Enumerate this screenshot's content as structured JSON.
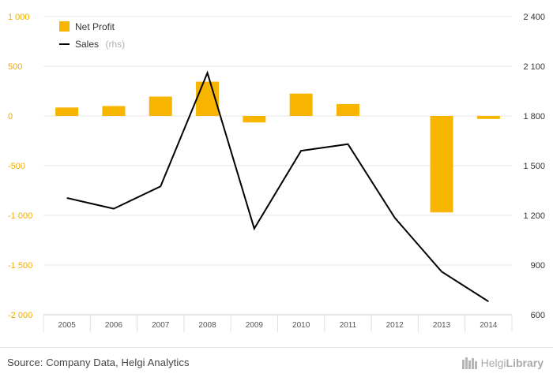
{
  "chart_data": {
    "type": "bar+line",
    "categories": [
      "2005",
      "2006",
      "2007",
      "2008",
      "2009",
      "2010",
      "2011",
      "2012",
      "2013",
      "2014"
    ],
    "series": [
      {
        "name": "Net Profit",
        "type": "bar",
        "axis": "left",
        "color": "#f8b500",
        "values": [
          85,
          100,
          195,
          345,
          -65,
          225,
          120,
          0,
          -970,
          -30
        ]
      },
      {
        "name": "Sales",
        "suffix": "(rhs)",
        "type": "line",
        "axis": "right",
        "color": "#000000",
        "values": [
          1305,
          1240,
          1375,
          2060,
          1120,
          1590,
          1630,
          1185,
          860,
          680
        ]
      }
    ],
    "left_axis": {
      "ylim": [
        -2000,
        1000
      ],
      "ticks": [
        1000,
        500,
        0,
        -500,
        -1000,
        -1500,
        -2000
      ],
      "tick_labels": [
        "1 000",
        "500",
        "0",
        "-500",
        "-1 000",
        "-1 500",
        "-2 000"
      ],
      "color": "#f2ac00"
    },
    "right_axis": {
      "ylim": [
        600,
        2400
      ],
      "ticks": [
        2400,
        2100,
        1800,
        1500,
        1200,
        900,
        600
      ],
      "tick_labels": [
        "2 400",
        "2 100",
        "1 800",
        "1 500",
        "1 200",
        "900",
        "600"
      ]
    },
    "legend_position": "top-left",
    "grid": true
  },
  "footer": {
    "source": "Source: Company Data, Helgi Analytics",
    "brand_prefix": "Helgi",
    "brand_name": "Library"
  }
}
